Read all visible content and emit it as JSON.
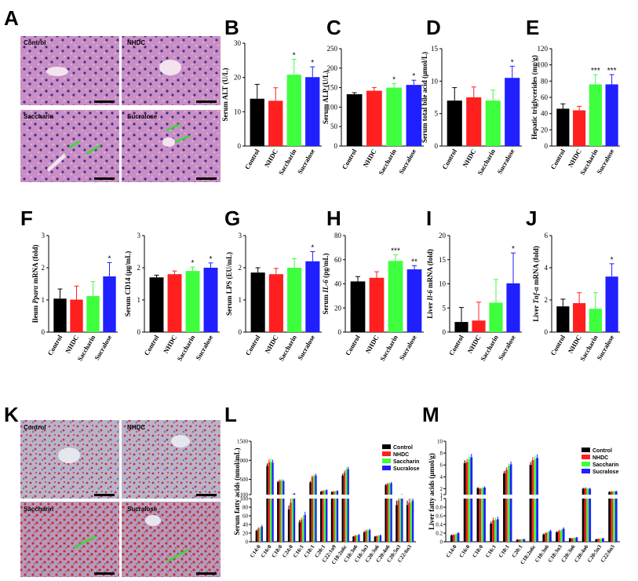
{
  "colors": {
    "control": "#000000",
    "nhdc": "#ff1f1f",
    "saccharin": "#3dff3d",
    "sucralose": "#1f1fff"
  },
  "groups": [
    "Control",
    "NHDC",
    "Saccharin",
    "Sucralose"
  ],
  "panel_letters": {
    "A": "A",
    "B": "B",
    "C": "C",
    "D": "D",
    "E": "E",
    "F": "F",
    "G": "G",
    "H": "H",
    "I": "I",
    "J": "J",
    "K": "K",
    "L": "L",
    "M": "M"
  },
  "histology": {
    "A": [
      "Control",
      "NHDC",
      "Saccharin",
      "Sucralose"
    ],
    "K": [
      "Control",
      "NHDC",
      "Saccharin",
      "Sucralose"
    ]
  },
  "chart_data": [
    {
      "id": "B",
      "type": "bar",
      "ylabel": "Serum ALT (U/L)",
      "ylim": [
        0,
        30
      ],
      "yticks": [
        0,
        10,
        20,
        30
      ],
      "values": [
        13.8,
        13.2,
        20.8,
        20.1
      ],
      "errors": [
        4.2,
        3.8,
        4.5,
        3
      ],
      "stars": [
        "",
        "",
        "*",
        "*"
      ]
    },
    {
      "id": "C",
      "type": "bar",
      "ylabel": "Serum ALP (U/L)",
      "ylim": [
        0,
        250
      ],
      "yticks": [
        0,
        50,
        100,
        150,
        200,
        250
      ],
      "values": [
        133,
        142,
        150,
        157
      ],
      "errors": [
        4,
        8,
        10,
        12
      ],
      "stars": [
        "",
        "",
        "*",
        "*"
      ]
    },
    {
      "id": "D",
      "type": "bar",
      "ylabel": "Serum total bile acid (μmol/L)",
      "ylim": [
        0,
        15
      ],
      "yticks": [
        0,
        5,
        10,
        15
      ],
      "values": [
        7,
        7.5,
        7,
        10.5
      ],
      "errors": [
        2,
        1.6,
        1.6,
        1.8
      ],
      "stars": [
        "",
        "",
        "",
        "*"
      ]
    },
    {
      "id": "E",
      "type": "bar",
      "ylabel": "Hepatic triglycerides (mg/g)",
      "ylim": [
        0,
        120
      ],
      "yticks": [
        0,
        20,
        40,
        60,
        80,
        100,
        120
      ],
      "values": [
        46,
        44,
        76,
        76
      ],
      "errors": [
        6,
        5,
        12,
        12
      ],
      "stars": [
        "",
        "",
        "***",
        "***"
      ]
    },
    {
      "id": "F",
      "type": "bar",
      "ylabel": "Ileum Pparα mRNA (fold)",
      "ylim": [
        0,
        3
      ],
      "yticks": [
        0,
        1,
        2,
        3
      ],
      "values": [
        1.04,
        1.01,
        1.12,
        1.73
      ],
      "errors": [
        0.3,
        0.42,
        0.45,
        0.43
      ],
      "stars": [
        "",
        "",
        "",
        "*"
      ]
    },
    {
      "id": "F2",
      "type": "bar",
      "ylabel": "Serum CD14 (μg/mL)",
      "ylim": [
        0,
        3
      ],
      "yticks": [
        0,
        1,
        2,
        3
      ],
      "values": [
        1.7,
        1.8,
        1.9,
        2
      ],
      "errors": [
        0.07,
        0.1,
        0.12,
        0.15
      ],
      "stars": [
        "",
        "",
        "*",
        "*"
      ]
    },
    {
      "id": "G",
      "type": "bar",
      "ylabel": "Serum LPS (EU/mL)",
      "ylim": [
        0,
        3
      ],
      "yticks": [
        0,
        1,
        2,
        3
      ],
      "values": [
        1.85,
        1.8,
        2.0,
        2.2
      ],
      "errors": [
        0.15,
        0.18,
        0.28,
        0.3
      ],
      "stars": [
        "",
        "",
        "",
        "*"
      ]
    },
    {
      "id": "H",
      "type": "bar",
      "ylabel": "Serum IL-6 (pg/mL)",
      "ylim": [
        0,
        80
      ],
      "yticks": [
        0,
        20,
        40,
        60,
        80
      ],
      "values": [
        42,
        45,
        59,
        52
      ],
      "errors": [
        4,
        5,
        5,
        3
      ],
      "stars": [
        "",
        "",
        "***",
        "**"
      ]
    },
    {
      "id": "I",
      "type": "bar",
      "ylabel": "Liver Il-6 mRNA (fold)",
      "ylim": [
        0,
        20
      ],
      "yticks": [
        0,
        5,
        10,
        15,
        20
      ],
      "values": [
        2.1,
        2.4,
        6.1,
        10.1
      ],
      "errors": [
        3,
        3.8,
        4.8,
        6.3
      ],
      "stars": [
        "",
        "",
        "",
        "*"
      ]
    },
    {
      "id": "J",
      "type": "bar",
      "ylabel": "Liver Tnf-α mRNA (fold)",
      "ylim": [
        0,
        6
      ],
      "yticks": [
        0,
        2,
        4,
        6
      ],
      "values": [
        1.6,
        1.8,
        1.45,
        3.45
      ],
      "errors": [
        0.45,
        0.65,
        1,
        0.8
      ],
      "stars": [
        "",
        "",
        "",
        "*"
      ]
    },
    {
      "id": "L",
      "type": "bar",
      "ylabel": "Serum fatty acids (nmol/mL)",
      "upper_ylim": [
        100,
        1500
      ],
      "upper_ticks": [
        100,
        500,
        1000,
        1500
      ],
      "lower_ylim": [
        0,
        100
      ],
      "lower_ticks": [
        0,
        20,
        40,
        60,
        80,
        100
      ],
      "categories": [
        "C14:0",
        "C16:0",
        "C18:0",
        "C24:0",
        "C16:1",
        "C18:1",
        "C20:1",
        "C22:1n9",
        "C18:2n6c",
        "C18:3n6",
        "C18:3n3",
        "C20:3n6",
        "C20:4n6",
        "C20:5n3",
        "C22:6n3"
      ],
      "series": [
        {
          "name": "Control",
          "values": [
            25,
            850,
            430,
            75,
            45,
            420,
            180,
            170,
            600,
            12,
            22,
            12,
            350,
            85,
            85
          ]
        },
        {
          "name": "NHDC",
          "values": [
            30,
            950,
            460,
            90,
            50,
            560,
            200,
            180,
            680,
            14,
            25,
            13,
            380,
            95,
            90
          ]
        },
        {
          "name": "Saccharin",
          "values": [
            32,
            970,
            480,
            110,
            55,
            590,
            210,
            190,
            750,
            15,
            26,
            14,
            390,
            100,
            92
          ]
        },
        {
          "name": "Sucralose",
          "values": [
            35,
            940,
            450,
            130,
            62,
            600,
            220,
            200,
            770,
            16,
            27,
            15,
            400,
            105,
            95
          ]
        }
      ]
    },
    {
      "id": "M",
      "type": "bar",
      "ylabel": "Liver fatty acids (μmol/g)",
      "upper_ylim": [
        1,
        10
      ],
      "upper_ticks": [
        1,
        2,
        4,
        6,
        8,
        10
      ],
      "lower_ylim": [
        0,
        1
      ],
      "lower_ticks": [
        0,
        0.2,
        0.4,
        0.6,
        0.8,
        1
      ],
      "categories": [
        "C14:0",
        "C16:0",
        "C18:0",
        "C16:1",
        "C18:1",
        "C20:1",
        "C18:2n6c",
        "C18:3n6",
        "C18:3n3",
        "C20:3n6",
        "C20:4n6",
        "C20:5n3",
        "C22:6n3"
      ],
      "series": [
        {
          "name": "Control",
          "values": [
            0.15,
            6.3,
            2.1,
            0.42,
            4.6,
            0.05,
            6,
            0.17,
            0.22,
            0.08,
            2,
            0.06,
            1.45
          ]
        },
        {
          "name": "NHDC",
          "values": [
            0.16,
            6.5,
            2.0,
            0.5,
            5.2,
            0.05,
            6.8,
            0.2,
            0.25,
            0.08,
            2.1,
            0.07,
            1.5
          ]
        },
        {
          "name": "Saccharin",
          "values": [
            0.17,
            7.0,
            2.1,
            0.5,
            5.8,
            0.06,
            7,
            0.22,
            0.27,
            0.09,
            2.0,
            0.07,
            1.55
          ]
        },
        {
          "name": "Sucralose",
          "values": [
            0.2,
            7.3,
            2.2,
            0.52,
            6.1,
            0.06,
            7.2,
            0.25,
            0.3,
            0.1,
            2.0,
            0.08,
            1.55
          ]
        }
      ]
    }
  ]
}
